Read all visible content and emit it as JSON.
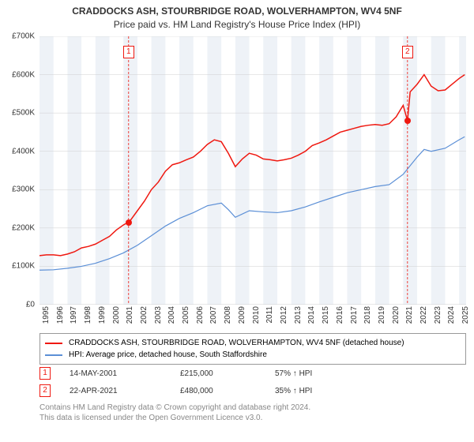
{
  "title": "CRADDOCKS ASH, STOURBRIDGE ROAD, WOLVERHAMPTON, WV4 5NF",
  "subtitle": "Price paid vs. HM Land Registry's House Price Index (HPI)",
  "chart": {
    "type": "line",
    "background_color": "#ffffff",
    "shade_color": "#eef2f7",
    "grid_color": "#d0d0d0",
    "axis_font_size": 10,
    "ylim": [
      0,
      700000
    ],
    "ytick_step": 100000,
    "yticks": [
      "£0",
      "£100K",
      "£200K",
      "£300K",
      "£400K",
      "£500K",
      "£600K",
      "£700K"
    ],
    "xlim": [
      1995,
      2025.5
    ],
    "xticks": [
      1995,
      1996,
      1997,
      1998,
      1999,
      2000,
      2001,
      2002,
      2003,
      2004,
      2005,
      2006,
      2007,
      2008,
      2009,
      2010,
      2011,
      2012,
      2013,
      2014,
      2015,
      2016,
      2017,
      2018,
      2019,
      2020,
      2021,
      2022,
      2023,
      2024,
      2025
    ],
    "shade_bands": [
      [
        1995,
        1996
      ],
      [
        1997,
        1998
      ],
      [
        1999,
        2000
      ],
      [
        2001,
        2002
      ],
      [
        2003,
        2004
      ],
      [
        2005,
        2006
      ],
      [
        2007,
        2008
      ],
      [
        2009,
        2010
      ],
      [
        2011,
        2012
      ],
      [
        2013,
        2014
      ],
      [
        2015,
        2016
      ],
      [
        2017,
        2018
      ],
      [
        2019,
        2020
      ],
      [
        2021,
        2022
      ],
      [
        2023,
        2024
      ],
      [
        2025,
        2025.5
      ]
    ],
    "series": [
      {
        "name": "property",
        "label": "CRADDOCKS ASH, STOURBRIDGE ROAD, WOLVERHAMPTON, WV4 5NF (detached house)",
        "color": "#ef1810",
        "width": 1.5,
        "points": [
          [
            1995,
            128000
          ],
          [
            1995.5,
            130000
          ],
          [
            1996,
            130000
          ],
          [
            1996.5,
            128000
          ],
          [
            1997,
            132000
          ],
          [
            1997.5,
            138000
          ],
          [
            1998,
            148000
          ],
          [
            1998.5,
            152000
          ],
          [
            1999,
            158000
          ],
          [
            1999.5,
            168000
          ],
          [
            2000,
            178000
          ],
          [
            2000.5,
            195000
          ],
          [
            2001,
            208000
          ],
          [
            2001.37,
            215000
          ],
          [
            2001.5,
            220000
          ],
          [
            2002,
            245000
          ],
          [
            2002.5,
            270000
          ],
          [
            2003,
            300000
          ],
          [
            2003.5,
            320000
          ],
          [
            2004,
            348000
          ],
          [
            2004.5,
            365000
          ],
          [
            2005,
            370000
          ],
          [
            2005.5,
            378000
          ],
          [
            2006,
            385000
          ],
          [
            2006.5,
            400000
          ],
          [
            2007,
            418000
          ],
          [
            2007.5,
            430000
          ],
          [
            2008,
            425000
          ],
          [
            2008.5,
            395000
          ],
          [
            2009,
            360000
          ],
          [
            2009.5,
            380000
          ],
          [
            2010,
            395000
          ],
          [
            2010.5,
            390000
          ],
          [
            2011,
            380000
          ],
          [
            2011.5,
            378000
          ],
          [
            2012,
            375000
          ],
          [
            2012.5,
            378000
          ],
          [
            2013,
            382000
          ],
          [
            2013.5,
            390000
          ],
          [
            2014,
            400000
          ],
          [
            2014.5,
            415000
          ],
          [
            2015,
            422000
          ],
          [
            2015.5,
            430000
          ],
          [
            2016,
            440000
          ],
          [
            2016.5,
            450000
          ],
          [
            2017,
            455000
          ],
          [
            2017.5,
            460000
          ],
          [
            2018,
            465000
          ],
          [
            2018.5,
            468000
          ],
          [
            2019,
            470000
          ],
          [
            2019.5,
            468000
          ],
          [
            2020,
            472000
          ],
          [
            2020.5,
            490000
          ],
          [
            2021,
            520000
          ],
          [
            2021.31,
            480000
          ],
          [
            2021.5,
            555000
          ],
          [
            2022,
            575000
          ],
          [
            2022.5,
            600000
          ],
          [
            2023,
            570000
          ],
          [
            2023.5,
            558000
          ],
          [
            2024,
            560000
          ],
          [
            2024.5,
            575000
          ],
          [
            2025,
            590000
          ],
          [
            2025.4,
            600000
          ]
        ]
      },
      {
        "name": "hpi",
        "label": "HPI: Average price, detached house, South Staffordshire",
        "color": "#5b8fd6",
        "width": 1.2,
        "points": [
          [
            1995,
            90000
          ],
          [
            1996,
            91000
          ],
          [
            1997,
            95000
          ],
          [
            1998,
            100000
          ],
          [
            1999,
            108000
          ],
          [
            2000,
            120000
          ],
          [
            2001,
            135000
          ],
          [
            2002,
            155000
          ],
          [
            2003,
            180000
          ],
          [
            2004,
            205000
          ],
          [
            2005,
            225000
          ],
          [
            2006,
            240000
          ],
          [
            2007,
            258000
          ],
          [
            2008,
            265000
          ],
          [
            2008.5,
            248000
          ],
          [
            2009,
            228000
          ],
          [
            2010,
            245000
          ],
          [
            2011,
            242000
          ],
          [
            2012,
            240000
          ],
          [
            2013,
            245000
          ],
          [
            2014,
            255000
          ],
          [
            2015,
            268000
          ],
          [
            2016,
            280000
          ],
          [
            2017,
            292000
          ],
          [
            2018,
            300000
          ],
          [
            2019,
            308000
          ],
          [
            2020,
            313000
          ],
          [
            2021,
            340000
          ],
          [
            2022,
            385000
          ],
          [
            2022.5,
            405000
          ],
          [
            2023,
            400000
          ],
          [
            2024,
            408000
          ],
          [
            2025,
            430000
          ],
          [
            2025.4,
            438000
          ]
        ]
      }
    ],
    "markers": [
      {
        "id": "1",
        "x": 2001.37,
        "y": 215000,
        "color": "#ef1810",
        "box_y_top": 70
      },
      {
        "id": "2",
        "x": 2021.31,
        "y": 480000,
        "color": "#ef1810",
        "box_y_top": 70
      }
    ]
  },
  "legend": {
    "items": [
      {
        "color": "#ef1810",
        "label": "CRADDOCKS ASH, STOURBRIDGE ROAD, WOLVERHAMPTON, WV4 5NF (detached house)"
      },
      {
        "color": "#5b8fd6",
        "label": "HPI: Average price, detached house, South Staffordshire"
      }
    ]
  },
  "annotations": [
    {
      "id": "1",
      "color": "#ef1810",
      "date": "14-MAY-2001",
      "price": "£215,000",
      "pct": "57% ↑ HPI"
    },
    {
      "id": "2",
      "color": "#ef1810",
      "date": "22-APR-2021",
      "price": "£480,000",
      "pct": "35% ↑ HPI"
    }
  ],
  "footer": {
    "line1": "Contains HM Land Registry data © Crown copyright and database right 2024.",
    "line2": "This data is licensed under the Open Government Licence v3.0."
  }
}
